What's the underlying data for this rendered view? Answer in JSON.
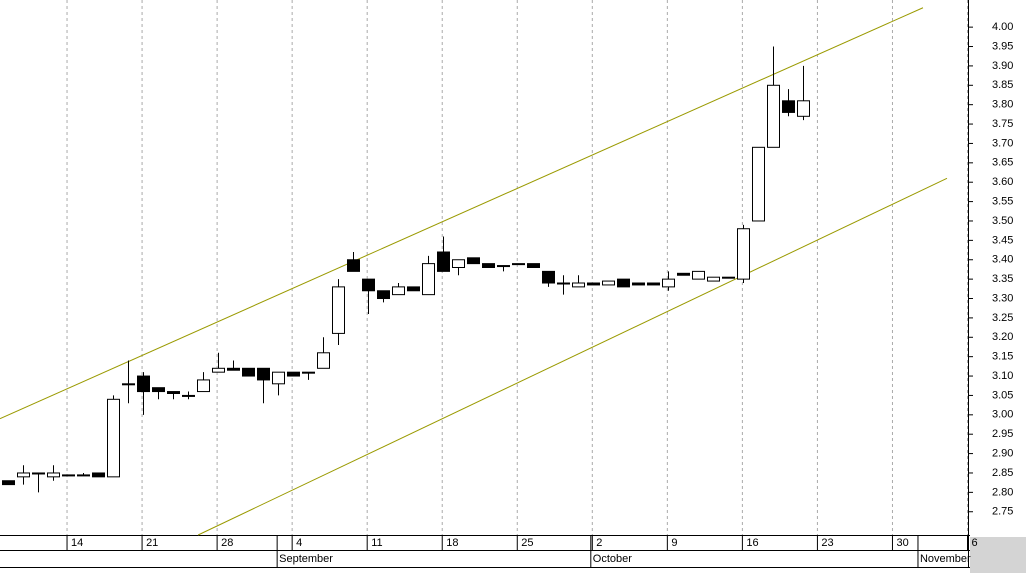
{
  "chart_data": {
    "type": "candlestick",
    "x": [
      0,
      1,
      2,
      3,
      4,
      5,
      6,
      7,
      8,
      9,
      10,
      11,
      12,
      13,
      14,
      15,
      16,
      17,
      18,
      19,
      20,
      21,
      22,
      23,
      24,
      25,
      26,
      27,
      28,
      29,
      30,
      31,
      32,
      33,
      34,
      35,
      36,
      37,
      38,
      39,
      40,
      41,
      42,
      43,
      44,
      45,
      46,
      47,
      48,
      49,
      50,
      51,
      52,
      53
    ],
    "open": [
      2.83,
      2.84,
      2.85,
      2.84,
      2.845,
      2.845,
      2.85,
      2.84,
      3.08,
      3.1,
      3.07,
      3.06,
      3.05,
      3.06,
      3.11,
      3.12,
      3.12,
      3.12,
      3.08,
      3.11,
      3.11,
      3.12,
      3.21,
      3.4,
      3.35,
      3.32,
      3.31,
      3.33,
      3.31,
      3.42,
      3.38,
      3.405,
      3.39,
      3.385,
      3.39,
      3.39,
      3.37,
      3.34,
      3.33,
      3.34,
      3.335,
      3.35,
      3.34,
      3.34,
      3.33,
      3.365,
      3.35,
      3.345,
      3.355,
      3.35,
      3.5,
      3.69,
      3.81,
      3.77
    ],
    "high": [
      2.83,
      2.87,
      2.85,
      2.87,
      2.845,
      2.85,
      2.85,
      3.05,
      3.14,
      3.11,
      3.07,
      3.06,
      3.06,
      3.11,
      3.16,
      3.14,
      3.12,
      3.12,
      3.11,
      3.11,
      3.11,
      3.2,
      3.35,
      3.42,
      3.35,
      3.32,
      3.34,
      3.33,
      3.41,
      3.46,
      3.4,
      3.405,
      3.39,
      3.385,
      3.39,
      3.39,
      3.37,
      3.36,
      3.36,
      3.34,
      3.345,
      3.35,
      3.34,
      3.34,
      3.37,
      3.365,
      3.37,
      3.355,
      3.355,
      3.49,
      3.69,
      3.95,
      3.84,
      3.9
    ],
    "low": [
      2.82,
      2.82,
      2.8,
      2.83,
      2.845,
      2.845,
      2.84,
      2.84,
      3.03,
      3.0,
      3.04,
      3.04,
      3.04,
      3.06,
      3.11,
      3.115,
      3.1,
      3.03,
      3.05,
      3.1,
      3.09,
      3.12,
      3.18,
      3.37,
      3.26,
      3.29,
      3.31,
      3.32,
      3.31,
      3.37,
      3.36,
      3.39,
      3.38,
      3.37,
      3.39,
      3.38,
      3.33,
      3.31,
      3.33,
      3.335,
      3.335,
      3.33,
      3.335,
      3.335,
      3.32,
      3.36,
      3.35,
      3.345,
      3.355,
      3.34,
      3.5,
      3.69,
      3.77,
      3.76
    ],
    "close": [
      2.82,
      2.85,
      2.85,
      2.85,
      2.845,
      2.845,
      2.84,
      3.04,
      3.08,
      3.06,
      3.06,
      3.055,
      3.05,
      3.09,
      3.12,
      3.115,
      3.1,
      3.09,
      3.11,
      3.1,
      3.11,
      3.16,
      3.33,
      3.37,
      3.32,
      3.3,
      3.33,
      3.32,
      3.39,
      3.37,
      3.4,
      3.39,
      3.38,
      3.385,
      3.39,
      3.38,
      3.34,
      3.34,
      3.34,
      3.335,
      3.345,
      3.33,
      3.335,
      3.335,
      3.35,
      3.36,
      3.37,
      3.355,
      3.355,
      3.48,
      3.69,
      3.85,
      3.78,
      3.81
    ],
    "xlim": [
      -0.5,
      64
    ],
    "xticks": [
      {
        "value": 4,
        "label": "14"
      },
      {
        "value": 9,
        "label": "21"
      },
      {
        "value": 14,
        "label": "28"
      },
      {
        "value": 19,
        "label": "4"
      },
      {
        "value": 24,
        "label": "11"
      },
      {
        "value": 29,
        "label": "18"
      },
      {
        "value": 34,
        "label": "25"
      },
      {
        "value": 39,
        "label": "2"
      },
      {
        "value": 44,
        "label": "9"
      },
      {
        "value": 49,
        "label": "16"
      },
      {
        "value": 54,
        "label": "23"
      },
      {
        "value": 59,
        "label": "30"
      },
      {
        "value": 64,
        "label": "6"
      }
    ],
    "months": [
      {
        "value": 18,
        "label": "September"
      },
      {
        "value": 38.9,
        "label": "October"
      },
      {
        "value": 60.7,
        "label": "November"
      }
    ],
    "ylim": [
      2.69,
      4.07
    ],
    "yticks": [
      2.75,
      {
        "value": 2.8,
        "label": "2.80"
      },
      2.85,
      {
        "value": 2.9,
        "label": "2.90"
      },
      2.95,
      {
        "value": 3.0,
        "label": "3.00"
      },
      3.05,
      {
        "value": 3.1,
        "label": "3.10"
      },
      3.15,
      {
        "value": 3.2,
        "label": "3.20"
      },
      3.25,
      {
        "value": 3.3,
        "label": "3.30"
      },
      3.35,
      {
        "value": 3.4,
        "label": "3.40"
      },
      3.45,
      {
        "value": 3.5,
        "label": "3.50"
      },
      3.55,
      {
        "value": 3.6,
        "label": "3.60"
      },
      3.65,
      {
        "value": 3.7,
        "label": "3.70"
      },
      3.75,
      {
        "value": 3.8,
        "label": "3.80"
      },
      3.85,
      {
        "value": 3.9,
        "label": "3.90"
      },
      3.95,
      {
        "value": 4.0,
        "label": "4.00"
      }
    ],
    "trendlines": [
      {
        "x": [
          -0.5,
          61
        ],
        "y": [
          2.99,
          4.05
        ]
      },
      {
        "x": [
          12.7,
          62.6
        ],
        "y": [
          2.69,
          3.61
        ]
      }
    ],
    "trend_color": "#9a9a00",
    "up_color": "#ffffff",
    "down_color": "#000000",
    "grid": true
  }
}
